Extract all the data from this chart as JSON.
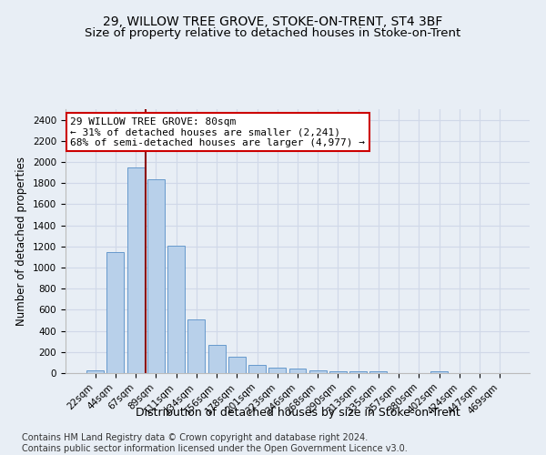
{
  "title": "29, WILLOW TREE GROVE, STOKE-ON-TRENT, ST4 3BF",
  "subtitle": "Size of property relative to detached houses in Stoke-on-Trent",
  "xlabel": "Distribution of detached houses by size in Stoke-on-Trent",
  "ylabel": "Number of detached properties",
  "categories": [
    "22sqm",
    "44sqm",
    "67sqm",
    "89sqm",
    "111sqm",
    "134sqm",
    "156sqm",
    "178sqm",
    "201sqm",
    "223sqm",
    "246sqm",
    "268sqm",
    "290sqm",
    "313sqm",
    "335sqm",
    "357sqm",
    "380sqm",
    "402sqm",
    "424sqm",
    "447sqm",
    "469sqm"
  ],
  "values": [
    30,
    1145,
    1950,
    1840,
    1210,
    510,
    265,
    155,
    80,
    50,
    42,
    22,
    20,
    13,
    20,
    0,
    0,
    20,
    0,
    0,
    0
  ],
  "bar_color": "#b8d0ea",
  "bar_edge_color": "#6699cc",
  "vline_color": "#8b0000",
  "annotation_text": "29 WILLOW TREE GROVE: 80sqm\n← 31% of detached houses are smaller (2,241)\n68% of semi-detached houses are larger (4,977) →",
  "annotation_box_color": "#ffffff",
  "annotation_box_edgecolor": "#cc0000",
  "ylim": [
    0,
    2500
  ],
  "yticks": [
    0,
    200,
    400,
    600,
    800,
    1000,
    1200,
    1400,
    1600,
    1800,
    2000,
    2200,
    2400
  ],
  "footer1": "Contains HM Land Registry data © Crown copyright and database right 2024.",
  "footer2": "Contains public sector information licensed under the Open Government Licence v3.0.",
  "background_color": "#e8eef5",
  "plot_background": "#e8eef5",
  "grid_color": "#d0d8e8",
  "title_fontsize": 10,
  "subtitle_fontsize": 9.5,
  "xlabel_fontsize": 9,
  "ylabel_fontsize": 8.5,
  "tick_fontsize": 7.5,
  "annotation_fontsize": 8,
  "footer_fontsize": 7
}
